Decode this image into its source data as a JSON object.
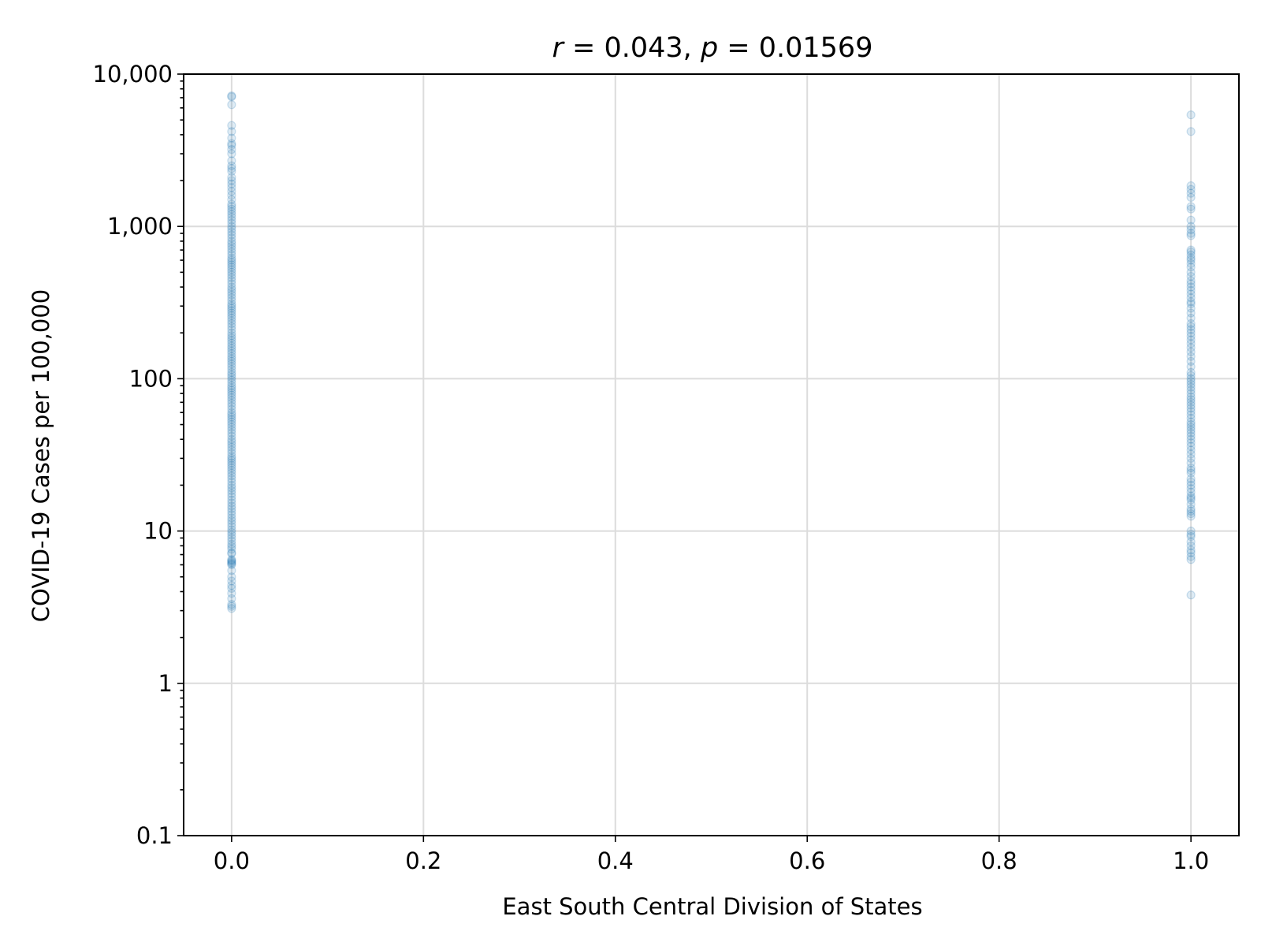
{
  "chart_data": {
    "type": "scatter",
    "title": {
      "r_symbol": "r",
      "r_value": " = 0.043, ",
      "p_symbol": "p",
      "p_value": " =  0.01569"
    },
    "xlabel": "East South Central Division of States",
    "ylabel": "COVID-19 Cases per 100,000",
    "xlim": [
      -0.05,
      1.05
    ],
    "ylim": [
      0.1,
      10000
    ],
    "yscale": "log",
    "grid": true,
    "x_ticks": [
      {
        "value": 0.0,
        "label": "0.0"
      },
      {
        "value": 0.2,
        "label": "0.2"
      },
      {
        "value": 0.4,
        "label": "0.4"
      },
      {
        "value": 0.6,
        "label": "0.6"
      },
      {
        "value": 0.8,
        "label": "0.8"
      },
      {
        "value": 1.0,
        "label": "1.0"
      }
    ],
    "y_ticks": [
      {
        "value": 0.1,
        "label": "0.1"
      },
      {
        "value": 1,
        "label": "1"
      },
      {
        "value": 10,
        "label": "10"
      },
      {
        "value": 100,
        "label": "100"
      },
      {
        "value": 1000,
        "label": "1,000"
      },
      {
        "value": 10000,
        "label": "10,000"
      }
    ],
    "marker_color": "#1f77b4",
    "marker_alpha": 0.15,
    "series": [
      {
        "x": 0.0,
        "y": [
          7.2,
          7.1,
          6.1,
          6.3,
          6.0,
          5.5,
          5.0,
          4.7,
          4.4,
          4.2,
          3.9,
          3.6,
          3.3,
          3.2,
          3.1,
          7200,
          7100,
          6300,
          4600,
          4200,
          3800,
          3500,
          3400,
          3200,
          3000,
          2700,
          2500,
          2400,
          2300,
          2100,
          2000,
          1900,
          1800,
          1700,
          1600,
          1500,
          1400,
          1350,
          1300,
          1250,
          1200,
          1150,
          1100,
          1050,
          1000,
          960,
          920,
          880,
          840,
          800,
          770,
          740,
          710,
          680,
          650,
          620,
          600,
          580,
          560,
          540,
          520,
          500,
          480,
          460,
          440,
          420,
          400,
          385,
          370,
          355,
          340,
          325,
          310,
          300,
          290,
          280,
          270,
          260,
          250,
          240,
          230,
          220,
          210,
          200,
          192,
          185,
          178,
          171,
          164,
          158,
          152,
          146,
          140,
          135,
          130,
          125,
          120,
          115,
          110,
          106,
          102,
          98,
          94,
          90,
          87,
          84,
          81,
          78,
          75,
          72,
          69,
          66,
          63,
          60,
          58,
          56,
          54,
          52,
          50,
          48,
          46,
          44,
          42,
          40,
          38.5,
          37,
          35.5,
          34,
          32.5,
          31,
          30,
          29,
          28,
          27,
          26,
          25,
          24,
          23,
          22,
          21,
          20,
          19.2,
          18.4,
          17.6,
          16.8,
          16,
          15.3,
          14.6,
          14,
          13.4,
          12.8,
          12.2,
          11.7,
          11.2,
          10.7,
          10.2,
          9.8,
          9.4,
          9.0,
          8.6,
          8.2,
          7.9,
          7.6,
          6.5,
          6.4,
          6.2
        ]
      },
      {
        "x": 1.0,
        "y": [
          5400,
          4200,
          1850,
          1750,
          1650,
          1550,
          1350,
          1300,
          1100,
          1000,
          950,
          900,
          870,
          700,
          680,
          650,
          620,
          600,
          570,
          540,
          500,
          470,
          440,
          420,
          400,
          380,
          360,
          340,
          320,
          310,
          290,
          270,
          250,
          230,
          220,
          210,
          200,
          190,
          180,
          170,
          160,
          150,
          140,
          130,
          120,
          110,
          105,
          100,
          96,
          92,
          88,
          84,
          80,
          76,
          73,
          70,
          67,
          64,
          61,
          58,
          55,
          52,
          50,
          48,
          46,
          44,
          42,
          40,
          38,
          36,
          34,
          32,
          30,
          28,
          26,
          25,
          24,
          22,
          21,
          20,
          19,
          18,
          17,
          16.5,
          16,
          15,
          14,
          13.5,
          13,
          12.5,
          10,
          9.5,
          9.2,
          8.5,
          8.0,
          7.5,
          7.2,
          6.8,
          6.5,
          3.8
        ]
      }
    ]
  }
}
